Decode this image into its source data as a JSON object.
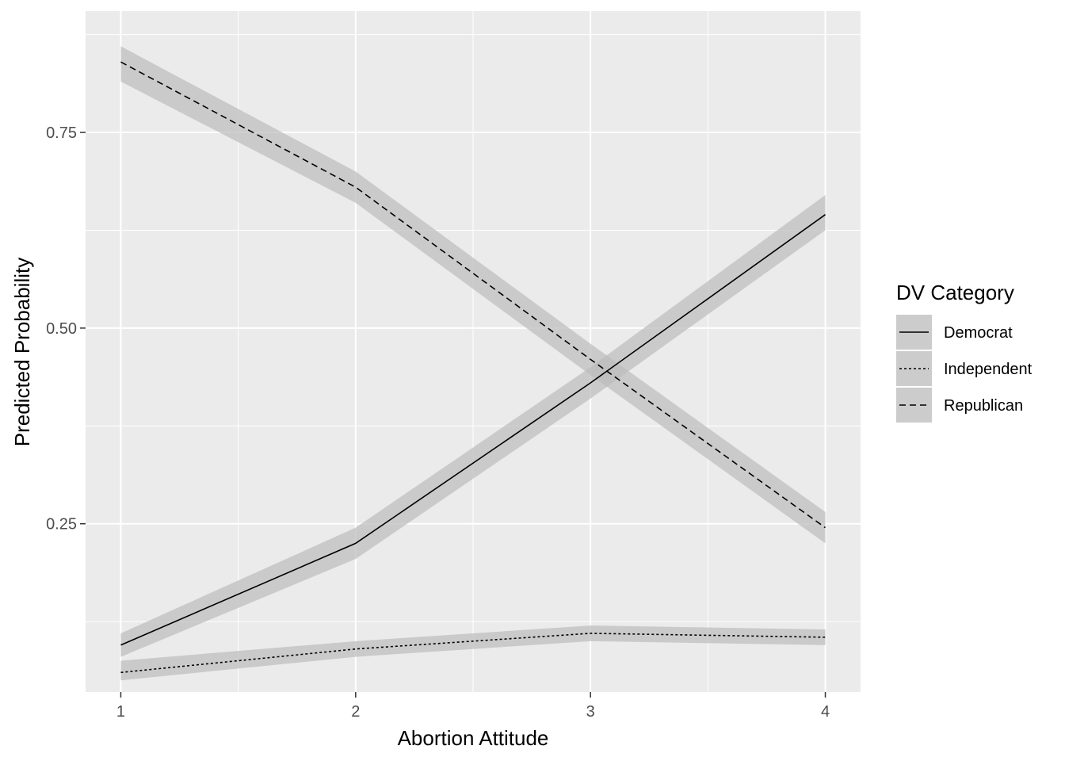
{
  "chart_data": {
    "type": "line",
    "xlabel": "Abortion Attitude",
    "ylabel": "Predicted Probability",
    "x": [
      1,
      2,
      3,
      4
    ],
    "xlim": [
      0.85,
      4.15
    ],
    "ylim": [
      0.035,
      0.905
    ],
    "x_ticks": [
      1,
      2,
      3,
      4
    ],
    "x_tick_labels": [
      "1",
      "2",
      "3",
      "4"
    ],
    "y_ticks": [
      0.25,
      0.5,
      0.75
    ],
    "y_tick_labels": [
      "0.25",
      "0.50",
      "0.75"
    ],
    "grid": true,
    "legend": {
      "title": "DV Category",
      "position": "right"
    },
    "colors": {
      "panel": "#EBEBEB",
      "grid": "#FFFFFF",
      "ribbon": "#BDBDBD",
      "line": "#000000",
      "tick_text": "#4D4D4D"
    },
    "series": [
      {
        "name": "Democrat",
        "linetype": "solid",
        "values": [
          0.095,
          0.225,
          0.43,
          0.645
        ],
        "lower": [
          0.08,
          0.205,
          0.41,
          0.625
        ],
        "upper": [
          0.11,
          0.245,
          0.45,
          0.67
        ]
      },
      {
        "name": "Independent",
        "linetype": "dotted",
        "values": [
          0.06,
          0.09,
          0.11,
          0.105
        ],
        "lower": [
          0.05,
          0.08,
          0.1,
          0.095
        ],
        "upper": [
          0.075,
          0.1,
          0.12,
          0.115
        ]
      },
      {
        "name": "Republican",
        "linetype": "dashed",
        "values": [
          0.84,
          0.68,
          0.46,
          0.245
        ],
        "lower": [
          0.815,
          0.66,
          0.44,
          0.225
        ],
        "upper": [
          0.86,
          0.7,
          0.48,
          0.265
        ]
      }
    ]
  }
}
